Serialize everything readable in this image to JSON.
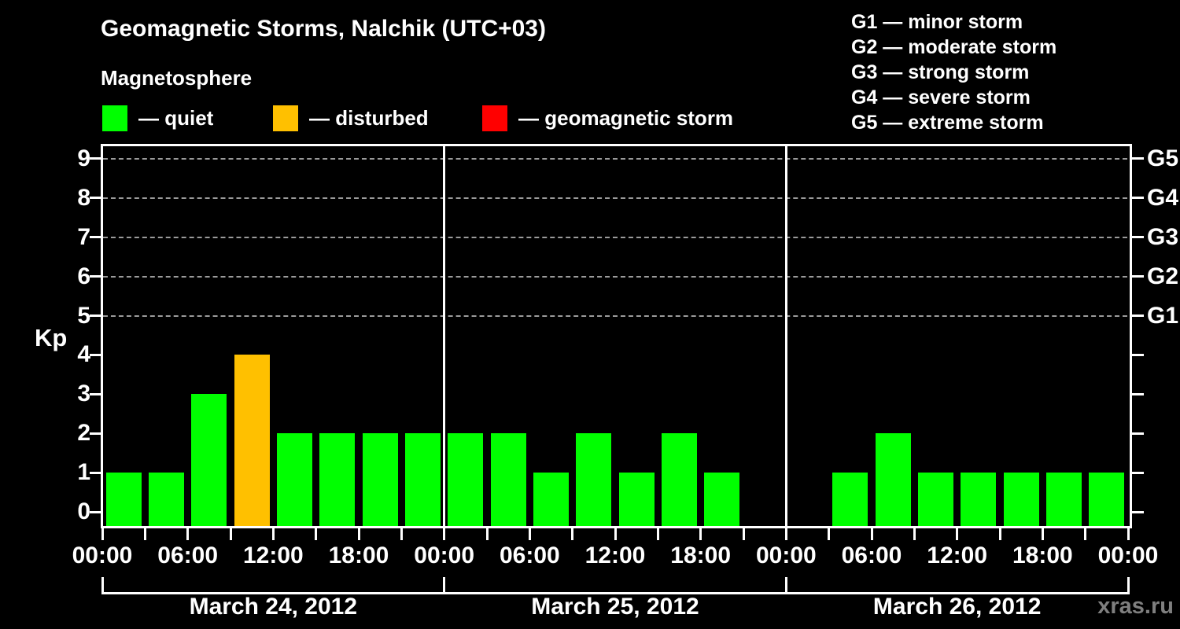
{
  "title": "Geomagnetic Storms, Nalchik (UTC+03)",
  "subtitle": "Magnetosphere",
  "kp_axis_label": "Kp",
  "watermark": "xras.ru",
  "legend": {
    "items": [
      {
        "key": "quiet",
        "label": "— quiet",
        "color": "#00ff00"
      },
      {
        "key": "disturbed",
        "label": "— disturbed",
        "color": "#ffc000"
      },
      {
        "key": "storm",
        "label": "— geomagnetic storm",
        "color": "#ff0000"
      }
    ]
  },
  "g_legend": [
    "G1 — minor storm",
    "G2 — moderate storm",
    "G3 — strong storm",
    "G4 — severe storm",
    "G5 — extreme storm"
  ],
  "chart_data": {
    "type": "bar",
    "title": "Geomagnetic Storms, Nalchik (UTC+03)",
    "subtitle": "Magnetosphere",
    "ylabel": "Kp",
    "ylim": [
      0,
      9
    ],
    "yticks": [
      0,
      1,
      2,
      3,
      4,
      5,
      6,
      7,
      8,
      9
    ],
    "gridlines_kp": [
      5,
      6,
      7,
      8,
      9
    ],
    "right_axis": [
      {
        "kp": 5,
        "label": "G1"
      },
      {
        "kp": 6,
        "label": "G2"
      },
      {
        "kp": 7,
        "label": "G3"
      },
      {
        "kp": 8,
        "label": "G4"
      },
      {
        "kp": 9,
        "label": "G5"
      }
    ],
    "slot_hours": 3,
    "x_major_labels": [
      "00:00",
      "06:00",
      "12:00",
      "18:00"
    ],
    "days": [
      {
        "date": "March 24, 2012",
        "values": [
          1,
          1,
          3,
          4,
          2,
          2,
          2,
          2
        ]
      },
      {
        "date": "March 25, 2012",
        "values": [
          2,
          2,
          1,
          2,
          1,
          2,
          1,
          null
        ]
      },
      {
        "date": "March 26, 2012",
        "values": [
          null,
          1,
          2,
          1,
          1,
          1,
          1,
          1
        ]
      }
    ],
    "color_rule": {
      "quiet_max": 3,
      "disturbed": 4,
      "storm_min": 5
    },
    "colors": {
      "quiet": "#00ff00",
      "disturbed": "#ffc000",
      "storm": "#ff0000"
    },
    "grid_color": "#9b9b9b",
    "background": "#000000",
    "legend_position": "top"
  }
}
